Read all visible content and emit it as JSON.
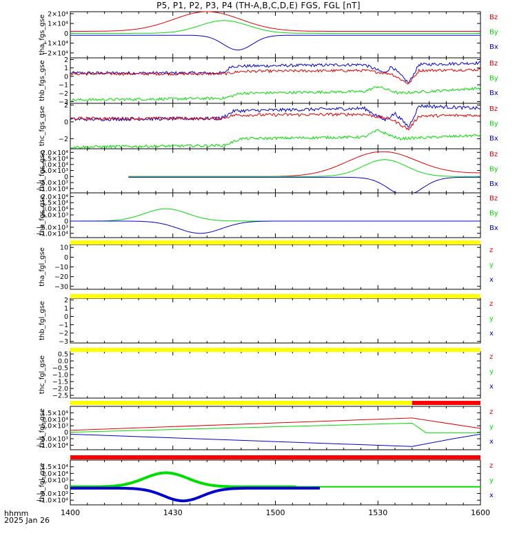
{
  "title": "P5, P1, P2, P3, P4 (TH-A,B,C,D,E) FGS, FGL [nT]",
  "colors": {
    "x": "#0000cc",
    "y": "#00dd00",
    "z": "#dd0000",
    "bar_ok": "#ffff00",
    "bar_bad": "#ff0000"
  },
  "footer": {
    "time_label": "hhmm",
    "date": "2025 Jan 26"
  },
  "x_axis": {
    "min_minutes": 840,
    "max_minutes": 960,
    "ticks": [
      {
        "m": 840,
        "label": "1400"
      },
      {
        "m": 870,
        "label": "1430"
      },
      {
        "m": 900,
        "label": "1500"
      },
      {
        "m": 930,
        "label": "1530"
      },
      {
        "m": 960,
        "label": "1600"
      }
    ]
  },
  "chart_data": [
    {
      "type": "line",
      "ylabel": "tha_fgs_gse",
      "legend": [
        "Bz",
        "By",
        "Bx"
      ],
      "ylim": [
        -25000,
        22000
      ],
      "yticks": [
        {
          "v": 20000,
          "label": "2×10⁴"
        },
        {
          "v": 10000,
          "label": "1×10⁴"
        },
        {
          "v": 0,
          "label": "0"
        },
        {
          "v": -10000,
          "label": "−1×10⁴"
        },
        {
          "v": -20000,
          "label": "−2×10⁴"
        }
      ],
      "series": [
        {
          "comp": "z",
          "shape": "bump",
          "center": 880,
          "width": 14,
          "amp": 20000,
          "base": 2000,
          "tail": 0,
          "start": 840,
          "end": 960,
          "noise": 0
        },
        {
          "comp": "y",
          "shape": "bump",
          "center": 885,
          "width": 10,
          "amp": 13000,
          "base": 0,
          "tail": 0,
          "start": 840,
          "end": 960,
          "noise": 0
        },
        {
          "comp": "x",
          "shape": "bump",
          "center": 889,
          "width": 6,
          "amp": -15000,
          "base": -2000,
          "tail": 0,
          "start": 840,
          "end": 960,
          "noise": 0
        }
      ]
    },
    {
      "type": "line",
      "ylabel": "thb_fgs_gse",
      "legend": [
        "Bz",
        "By",
        "Bx"
      ],
      "ylim": [
        -3.2,
        2.2
      ],
      "yticks": [
        {
          "v": 2,
          "label": "2"
        },
        {
          "v": 1,
          "label": "1"
        },
        {
          "v": 0,
          "label": "0"
        },
        {
          "v": -1,
          "label": "−1"
        },
        {
          "v": -2,
          "label": "−2"
        },
        {
          "v": -3,
          "label": "−3"
        }
      ],
      "series": [
        {
          "comp": "x",
          "shape": "noisy",
          "levels": [
            [
              840,
              0.4
            ],
            [
              885,
              0.4
            ],
            [
              887,
              1.2
            ],
            [
              926,
              1.4
            ],
            [
              932,
              0.4
            ],
            [
              934,
              1.2
            ],
            [
              939,
              -0.8
            ],
            [
              942,
              1.4
            ],
            [
              960,
              1.6
            ]
          ],
          "noise": 0.18,
          "start": 840,
          "end": 960
        },
        {
          "comp": "z",
          "shape": "noisy",
          "levels": [
            [
              840,
              0.3
            ],
            [
              885,
              0.3
            ],
            [
              890,
              0.6
            ],
            [
              926,
              0.7
            ],
            [
              934,
              0.3
            ],
            [
              939,
              -0.9
            ],
            [
              942,
              0.7
            ],
            [
              960,
              0.8
            ]
          ],
          "noise": 0.16,
          "start": 840,
          "end": 960
        },
        {
          "comp": "y",
          "shape": "noisy",
          "levels": [
            [
              840,
              -2.8
            ],
            [
              885,
              -2.6
            ],
            [
              890,
              -2.0
            ],
            [
              926,
              -1.8
            ],
            [
              930,
              -1.2
            ],
            [
              936,
              -2.0
            ],
            [
              960,
              -1.4
            ]
          ],
          "noise": 0.16,
          "start": 840,
          "end": 960
        }
      ]
    },
    {
      "type": "line",
      "ylabel": "thc_fgs_gse",
      "legend": [
        "Bz",
        "By",
        "Bx"
      ],
      "ylim": [
        -3.2,
        2.2
      ],
      "yticks": [
        {
          "v": 2,
          "label": "2"
        },
        {
          "v": 0,
          "label": "0"
        },
        {
          "v": -2,
          "label": "−2"
        }
      ],
      "series": [
        {
          "comp": "x",
          "shape": "noisy",
          "levels": [
            [
              840,
              0.3
            ],
            [
              884,
              0.4
            ],
            [
              888,
              1.3
            ],
            [
              926,
              1.6
            ],
            [
              932,
              0.2
            ],
            [
              935,
              1.0
            ],
            [
              939,
              -0.6
            ],
            [
              942,
              1.9
            ],
            [
              960,
              1.6
            ]
          ],
          "noise": 0.2,
          "start": 840,
          "end": 960
        },
        {
          "comp": "z",
          "shape": "noisy",
          "levels": [
            [
              840,
              0.4
            ],
            [
              884,
              0.4
            ],
            [
              888,
              0.8
            ],
            [
              926,
              0.9
            ],
            [
              934,
              0.3
            ],
            [
              939,
              -0.9
            ],
            [
              942,
              0.7
            ],
            [
              960,
              0.8
            ]
          ],
          "noise": 0.18,
          "start": 840,
          "end": 960
        },
        {
          "comp": "y",
          "shape": "noisy",
          "levels": [
            [
              840,
              -3.0
            ],
            [
              885,
              -2.8
            ],
            [
              890,
              -2.0
            ],
            [
              926,
              -1.8
            ],
            [
              930,
              -1.0
            ],
            [
              936,
              -2.0
            ],
            [
              960,
              -1.6
            ]
          ],
          "noise": 0.16,
          "start": 840,
          "end": 960
        }
      ]
    },
    {
      "type": "line",
      "ylabel": "thd_fgs_gse",
      "legend": [
        "Bz",
        "By",
        "Bx"
      ],
      "ylim": [
        -13500,
        23000
      ],
      "yticks": [
        {
          "v": 20000,
          "label": "2.0×10⁴"
        },
        {
          "v": 15000,
          "label": "1.5×10⁴"
        },
        {
          "v": 10000,
          "label": "1.0×10⁴"
        },
        {
          "v": 5000,
          "label": "5.0×10³"
        },
        {
          "v": 0,
          "label": "0"
        },
        {
          "v": -5000,
          "label": "−5.0×10³"
        },
        {
          "v": -10000,
          "label": "−1.0×10⁴"
        }
      ],
      "series": [
        {
          "comp": "z",
          "shape": "bump",
          "center": 931,
          "width": 14,
          "amp": 20500,
          "base": 0,
          "tail": 4500,
          "start": 857,
          "end": 960,
          "noise": 0
        },
        {
          "comp": "y",
          "shape": "bump",
          "center": 932,
          "width": 9,
          "amp": 14000,
          "base": 0,
          "tail": 0,
          "start": 857,
          "end": 960,
          "noise": 0
        },
        {
          "comp": "x",
          "shape": "bump",
          "center": 938,
          "width": 7,
          "amp": -15000,
          "base": -600,
          "tail": 0,
          "start": 857,
          "end": 960,
          "noise": 0
        }
      ]
    },
    {
      "type": "line",
      "ylabel": "the_fgs_gse",
      "legend": [
        "Bz",
        "By",
        "Bx"
      ],
      "ylim": [
        -13500,
        23000
      ],
      "yticks": [
        {
          "v": 20000,
          "label": "2.0×10⁴"
        },
        {
          "v": 15000,
          "label": "1.5×10⁴"
        },
        {
          "v": 10000,
          "label": "1.0×10⁴"
        },
        {
          "v": 5000,
          "label": "5.0×10³"
        },
        {
          "v": 0,
          "label": "0"
        },
        {
          "v": -5000,
          "label": "−5.0×10³"
        },
        {
          "v": -10000,
          "label": "−1.0×10⁴"
        }
      ],
      "series": [
        {
          "comp": "y",
          "shape": "bump",
          "center": 868,
          "width": 9,
          "amp": 10000,
          "base": 0,
          "tail": 0,
          "start": 840,
          "end": 960,
          "noise": 0
        },
        {
          "comp": "x",
          "shape": "bump",
          "center": 878,
          "width": 9,
          "amp": -10000,
          "base": 0,
          "tail": 0,
          "start": 840,
          "end": 960,
          "noise": 0
        }
      ]
    },
    {
      "type": "line",
      "ylabel": "tha_fgl_gse",
      "legend": [
        "z",
        "y",
        "x"
      ],
      "ylim": [
        -33,
        13
      ],
      "yticks": [
        {
          "v": 10,
          "label": "10"
        },
        {
          "v": 0,
          "label": "0"
        },
        {
          "v": -10,
          "label": "−10"
        },
        {
          "v": -20,
          "label": "−20"
        },
        {
          "v": -30,
          "label": "−30"
        }
      ],
      "series": []
    },
    {
      "type": "line",
      "ylabel": "thb_fgl_gse",
      "legend": [
        "z",
        "y",
        "x"
      ],
      "ylim": [
        -3.2,
        2.2
      ],
      "yticks": [
        {
          "v": 2,
          "label": "2"
        },
        {
          "v": 1,
          "label": "1"
        },
        {
          "v": 0,
          "label": "0"
        },
        {
          "v": -1,
          "label": "−1"
        },
        {
          "v": -2,
          "label": "−2"
        },
        {
          "v": -3,
          "label": "−3"
        }
      ],
      "series": []
    },
    {
      "type": "line",
      "ylabel": "thc_fgl_gse",
      "legend": [
        "z",
        "y",
        "x"
      ],
      "ylim": [
        -2.7,
        0.7
      ],
      "yticks": [
        {
          "v": 0.5,
          "label": "0.5"
        },
        {
          "v": 0,
          "label": "0.0"
        },
        {
          "v": -0.5,
          "label": "−0.5"
        },
        {
          "v": -1.0,
          "label": "−1.0"
        },
        {
          "v": -1.5,
          "label": "−1.5"
        },
        {
          "v": -2.0,
          "label": "−2.0"
        },
        {
          "v": -2.5,
          "label": "−2.5"
        }
      ],
      "series": []
    },
    {
      "type": "line",
      "ylabel": "thd_fgl_gse",
      "legend": [
        "z",
        "y",
        "x"
      ],
      "ylim": [
        -13500,
        20000
      ],
      "yticks": [
        {
          "v": 15000,
          "label": "1.5×10⁴"
        },
        {
          "v": 10000,
          "label": "1.0×10⁴"
        },
        {
          "v": 5000,
          "label": "5.0×10³"
        },
        {
          "v": 0,
          "label": "0"
        },
        {
          "v": -5000,
          "label": "−5.0×10³"
        },
        {
          "v": -10000,
          "label": "−1.0×10⁴"
        }
      ],
      "series": []
    },
    {
      "type": "line",
      "ylabel": "the_fgl_gse",
      "legend": [
        "z",
        "y",
        "x"
      ],
      "ylim": [
        -13500,
        20000
      ],
      "yticks": [
        {
          "v": 15000,
          "label": "1.5×10⁴"
        },
        {
          "v": 10000,
          "label": "1.0×10⁴"
        },
        {
          "v": 5000,
          "label": "5.0×10³"
        },
        {
          "v": 0,
          "label": "0"
        },
        {
          "v": -5000,
          "label": "−5.0×10³"
        },
        {
          "v": -10000,
          "label": "−1.0×10⁴"
        }
      ],
      "series": []
    }
  ]
}
